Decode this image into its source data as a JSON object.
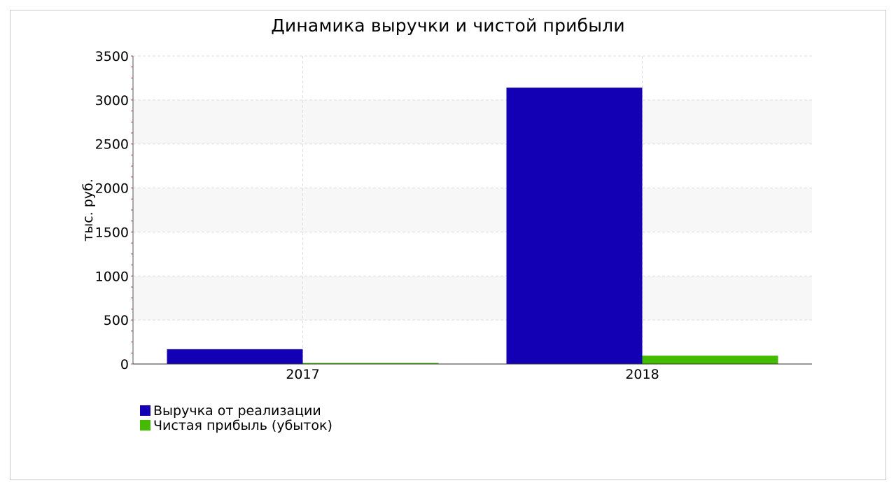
{
  "chart_data": {
    "type": "bar",
    "title": "Динамика выручки и чистой прибыли",
    "xlabel": "",
    "ylabel": "тыс. руб.",
    "categories": [
      "2017",
      "2018"
    ],
    "series": [
      {
        "name": "Выручка от реализации",
        "color": "#1400b4",
        "values": [
          168,
          3140
        ]
      },
      {
        "name": "Чистая прибыль (убыток)",
        "color": "#44bb00",
        "values": [
          8,
          95
        ]
      }
    ],
    "ylim": [
      0,
      3500
    ],
    "yticks": [
      0,
      500,
      1000,
      1500,
      2000,
      2500,
      3000,
      3500
    ],
    "grid": true,
    "legend": "bottom-left"
  }
}
